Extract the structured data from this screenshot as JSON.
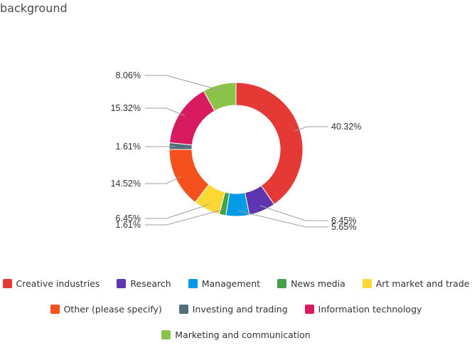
{
  "header": {
    "title": "background"
  },
  "chart_data": {
    "type": "pie",
    "donut": true,
    "series": [
      {
        "name": "Creative industries",
        "value": 40.32,
        "label": "40.32%",
        "color": "#e53935"
      },
      {
        "name": "Research",
        "value": 6.45,
        "label": "6.45%",
        "color": "#5e35b1"
      },
      {
        "name": "Management",
        "value": 5.65,
        "label": "5.65%",
        "color": "#039be5"
      },
      {
        "name": "News media",
        "value": 1.61,
        "label": "1.61%",
        "color": "#43a047"
      },
      {
        "name": "Art market and trade",
        "value": 6.45,
        "label": "6.45%",
        "color": "#fdd835"
      },
      {
        "name": "Other (please specify)",
        "value": 14.52,
        "label": "14.52%",
        "color": "#f4511e"
      },
      {
        "name": "Investing and trading",
        "value": 1.61,
        "label": "1.61%",
        "color": "#546e7a"
      },
      {
        "name": "Information technology",
        "value": 15.32,
        "label": "15.32%",
        "color": "#d81b60"
      },
      {
        "name": "Marketing and communication",
        "value": 8.06,
        "label": "8.06%",
        "color": "#8bc34a"
      }
    ],
    "legend_position": "bottom"
  }
}
